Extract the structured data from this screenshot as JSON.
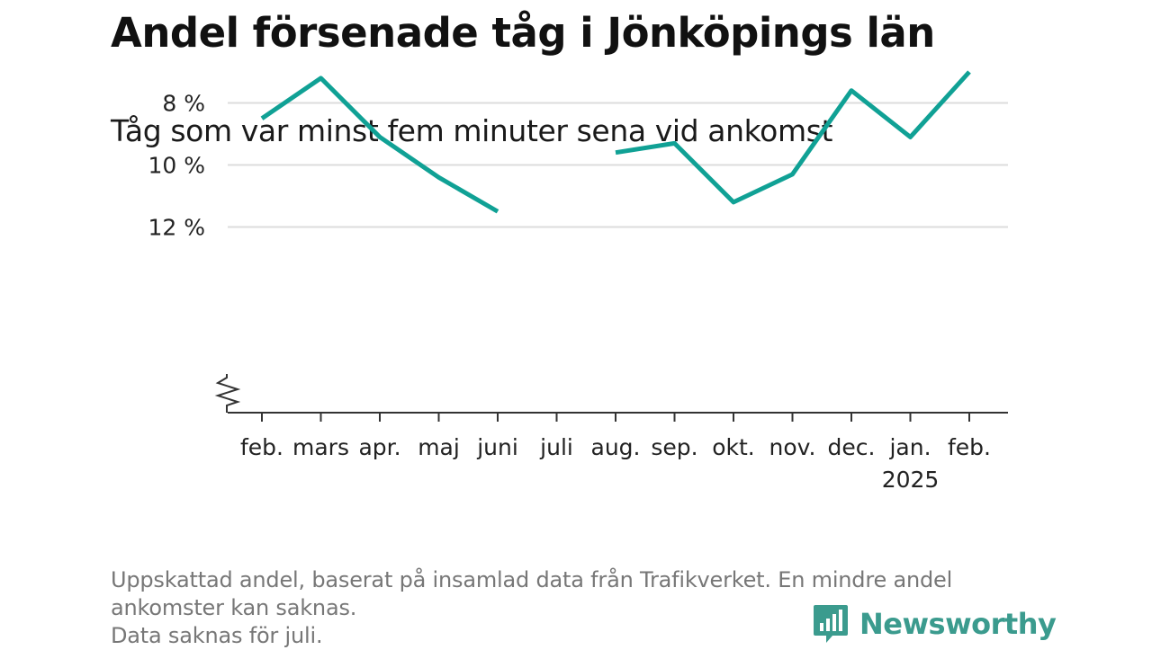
{
  "title": "Andel försenade tåg i Jönköpings län",
  "subtitle": "Tåg som var minst fem minuter sena vid ankomst",
  "footnote": {
    "line1": "Uppskattad andel, baserat på insamlad data från Trafikverket. En mindre andel",
    "line2": "ankomster kan saknas.",
    "line3": "Data saknas för juli."
  },
  "brand": {
    "name": "Newsworthy",
    "logo_icon": "bar-chart-speech-bubble-icon",
    "color": "#3b9b8e"
  },
  "chart_data": {
    "type": "line",
    "categories": [
      "feb.",
      "mars",
      "apr.",
      "maj",
      "juni",
      "juli",
      "aug.",
      "sep.",
      "okt.",
      "nov.",
      "dec.",
      "jan.",
      "feb."
    ],
    "year_label": {
      "category_index": 11,
      "text": "2025"
    },
    "series": [
      {
        "values": [
          8.5,
          7.2,
          9.1,
          10.4,
          11.5,
          null,
          9.6,
          9.3,
          11.2,
          10.3,
          7.6,
          9.1,
          7.0
        ],
        "color": "#10a195"
      }
    ],
    "yticks": [
      8,
      10,
      12
    ],
    "ytick_labels": [
      "8 %",
      "10 %",
      "12 %"
    ],
    "ylim": [
      6.0,
      12.0
    ],
    "axis_break": true,
    "grid": true,
    "xlabel": "",
    "ylabel": ""
  }
}
